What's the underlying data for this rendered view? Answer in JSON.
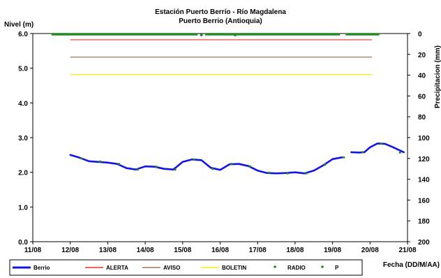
{
  "chart_data": {
    "type": "line",
    "title": "Estación Puerto Berrío - Río Magdalena",
    "subtitle": "Puerto Berrio (Antioquia)",
    "ylabel": "Nivel (m)",
    "y2label": "Precipitacion (mm)",
    "xlabel": "Fecha (DD/M/AA)",
    "xlim": [
      0,
      10
    ],
    "ylim": [
      0,
      6
    ],
    "y2lim": [
      0,
      200
    ],
    "y2_reversed": true,
    "grid": false,
    "legend_position": "bottom",
    "x_ticks": [
      "11/08",
      "12/08",
      "13/08",
      "14/08",
      "15/08",
      "16/08",
      "17/08",
      "18/08",
      "19/08",
      "20/08",
      "21/08"
    ],
    "y_ticks": [
      "0.0",
      "1.0",
      "2.0",
      "3.0",
      "4.0",
      "5.0",
      "6.0"
    ],
    "y2_ticks": [
      "0",
      "20",
      "40",
      "60",
      "80",
      "100",
      "120",
      "140",
      "160",
      "180",
      "200"
    ],
    "thresholds": [
      {
        "name": "ALERTA",
        "value": 5.82,
        "x_range": [
          1.0,
          9.05
        ],
        "color": "#e8322c"
      },
      {
        "name": "AVISO",
        "value": 5.32,
        "x_range": [
          1.0,
          9.05
        ],
        "color": "#a0785a"
      },
      {
        "name": "BOLETIN",
        "value": 4.82,
        "x_range": [
          1.0,
          9.05
        ],
        "color": "#f5f00a"
      }
    ],
    "series": [
      {
        "name": "Berrio",
        "color": "#1414e6",
        "segments": [
          {
            "x": [
              1.0,
              1.25,
              1.5,
              1.75,
              2.0,
              2.25,
              2.5,
              2.75,
              3.0,
              3.25,
              3.5,
              3.75,
              4.0,
              4.25,
              4.5,
              4.75,
              5.0,
              5.25,
              5.5,
              5.75,
              6.0,
              6.25,
              6.5,
              6.75,
              7.0,
              7.25,
              7.5,
              7.75,
              8.0,
              8.25
            ],
            "y": [
              2.5,
              2.42,
              2.32,
              2.3,
              2.28,
              2.24,
              2.12,
              2.08,
              2.17,
              2.16,
              2.1,
              2.08,
              2.3,
              2.37,
              2.35,
              2.13,
              2.07,
              2.23,
              2.24,
              2.18,
              2.05,
              1.98,
              1.97,
              1.98,
              2.0,
              1.97,
              2.05,
              2.2,
              2.38,
              2.43
            ]
          },
          {
            "x": [
              8.5,
              8.7,
              8.85,
              9.0,
              9.2,
              9.4,
              9.6,
              9.9
            ],
            "y": [
              2.58,
              2.57,
              2.58,
              2.72,
              2.83,
              2.82,
              2.73,
              2.58
            ]
          }
        ]
      },
      {
        "name": "RADIO",
        "color": "#228b22",
        "x": [
          1.3,
          1.8,
          2.3,
          2.8,
          3.3,
          3.8,
          4.3,
          4.8,
          5.3,
          5.8,
          6.3,
          6.8,
          7.3,
          7.8,
          8.3,
          8.8,
          9.3,
          9.8
        ],
        "y": [
          2.4,
          2.31,
          2.24,
          2.08,
          2.16,
          2.08,
          2.37,
          2.1,
          2.24,
          2.17,
          1.99,
          1.97,
          1.97,
          2.22,
          2.43,
          2.58,
          2.83,
          2.57
        ]
      },
      {
        "name": "P",
        "color": "#228b22",
        "axis": "y2",
        "segments": [
          {
            "x": [
              0.5,
              4.4
            ],
            "y": [
              0,
              0
            ]
          },
          {
            "x": [
              4.6,
              8.2
            ],
            "y": [
              0,
              0
            ]
          },
          {
            "x": [
              8.35,
              9.25
            ],
            "y": [
              0,
              0
            ]
          }
        ],
        "points_x": [
          4.5,
          5.4
        ]
      }
    ]
  }
}
